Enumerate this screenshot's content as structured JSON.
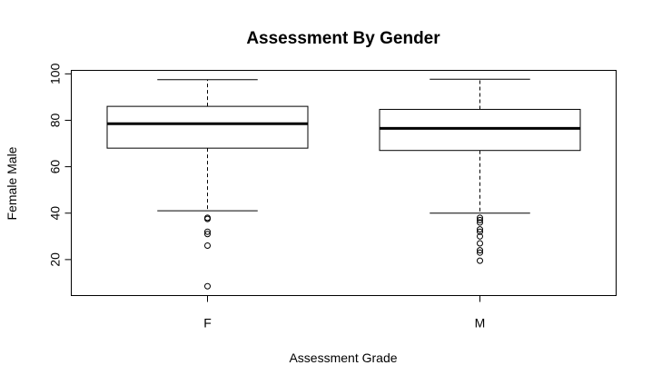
{
  "chart_data": {
    "type": "boxplot",
    "title": "Assessment By Gender",
    "xlabel": "Assessment Grade",
    "ylabel": "Female Male",
    "categories": [
      "F",
      "M"
    ],
    "ylim": [
      4.5,
      101.5
    ],
    "yticks": [
      20,
      40,
      60,
      80,
      100
    ],
    "grid": false,
    "boxes": [
      {
        "category": "F",
        "whisker_low": 41,
        "q1": 68,
        "median": 78.5,
        "q3": 86,
        "whisker_high": 97.5,
        "outliers": [
          38,
          37.5,
          32,
          31,
          26,
          8.5
        ]
      },
      {
        "category": "M",
        "whisker_low": 40,
        "q1": 67,
        "median": 76.5,
        "q3": 84.7,
        "whisker_high": 97.7,
        "outliers": [
          38,
          37,
          36,
          33,
          32,
          30,
          27,
          24,
          23,
          19.5
        ]
      }
    ]
  }
}
